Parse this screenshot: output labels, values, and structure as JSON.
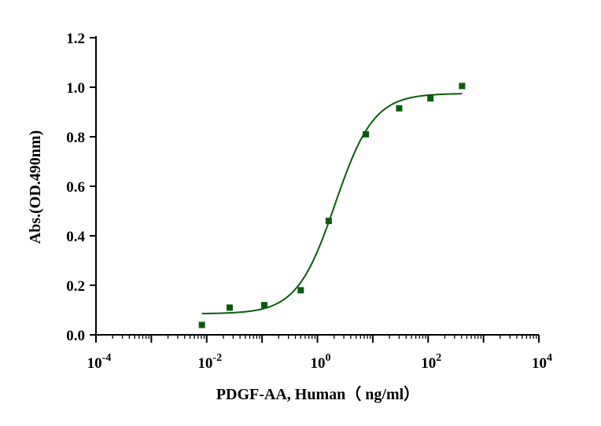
{
  "chart_data": {
    "type": "scatter",
    "title": "",
    "xlabel": "PDGF-AA, Human（ ng/ml）",
    "ylabel": "Abs.(OD.490nm)",
    "x_scale": "log10",
    "xlim": [
      0.0001,
      10000
    ],
    "ylim": [
      0.0,
      1.2
    ],
    "x_ticks": [
      {
        "value": 0.0001,
        "base": "10",
        "exp": "-4"
      },
      {
        "value": 0.01,
        "base": "10",
        "exp": "-2"
      },
      {
        "value": 1,
        "base": "10",
        "exp": "0"
      },
      {
        "value": 100,
        "base": "10",
        "exp": "2"
      },
      {
        "value": 10000,
        "base": "10",
        "exp": "4"
      }
    ],
    "y_ticks": [
      "0.0",
      "0.2",
      "0.4",
      "0.6",
      "0.8",
      "1.0",
      "1.2"
    ],
    "grid": false,
    "legend": "none",
    "marker_color": "#0a5c0a",
    "line_color": "#0a5c0a",
    "series": [
      {
        "points": [
          {
            "x": 0.0082,
            "y": 0.04
          },
          {
            "x": 0.026,
            "y": 0.11
          },
          {
            "x": 0.11,
            "y": 0.12
          },
          {
            "x": 0.5,
            "y": 0.18
          },
          {
            "x": 1.6,
            "y": 0.46
          },
          {
            "x": 7.5,
            "y": 0.81
          },
          {
            "x": 30,
            "y": 0.915
          },
          {
            "x": 110,
            "y": 0.955
          },
          {
            "x": 410,
            "y": 1.005
          }
        ]
      }
    ],
    "fit": {
      "model": "4PL",
      "bottom": 0.085,
      "top": 0.975,
      "ec50": 2.1,
      "hill": 1.25,
      "x_range": [
        0.0082,
        410
      ]
    }
  }
}
